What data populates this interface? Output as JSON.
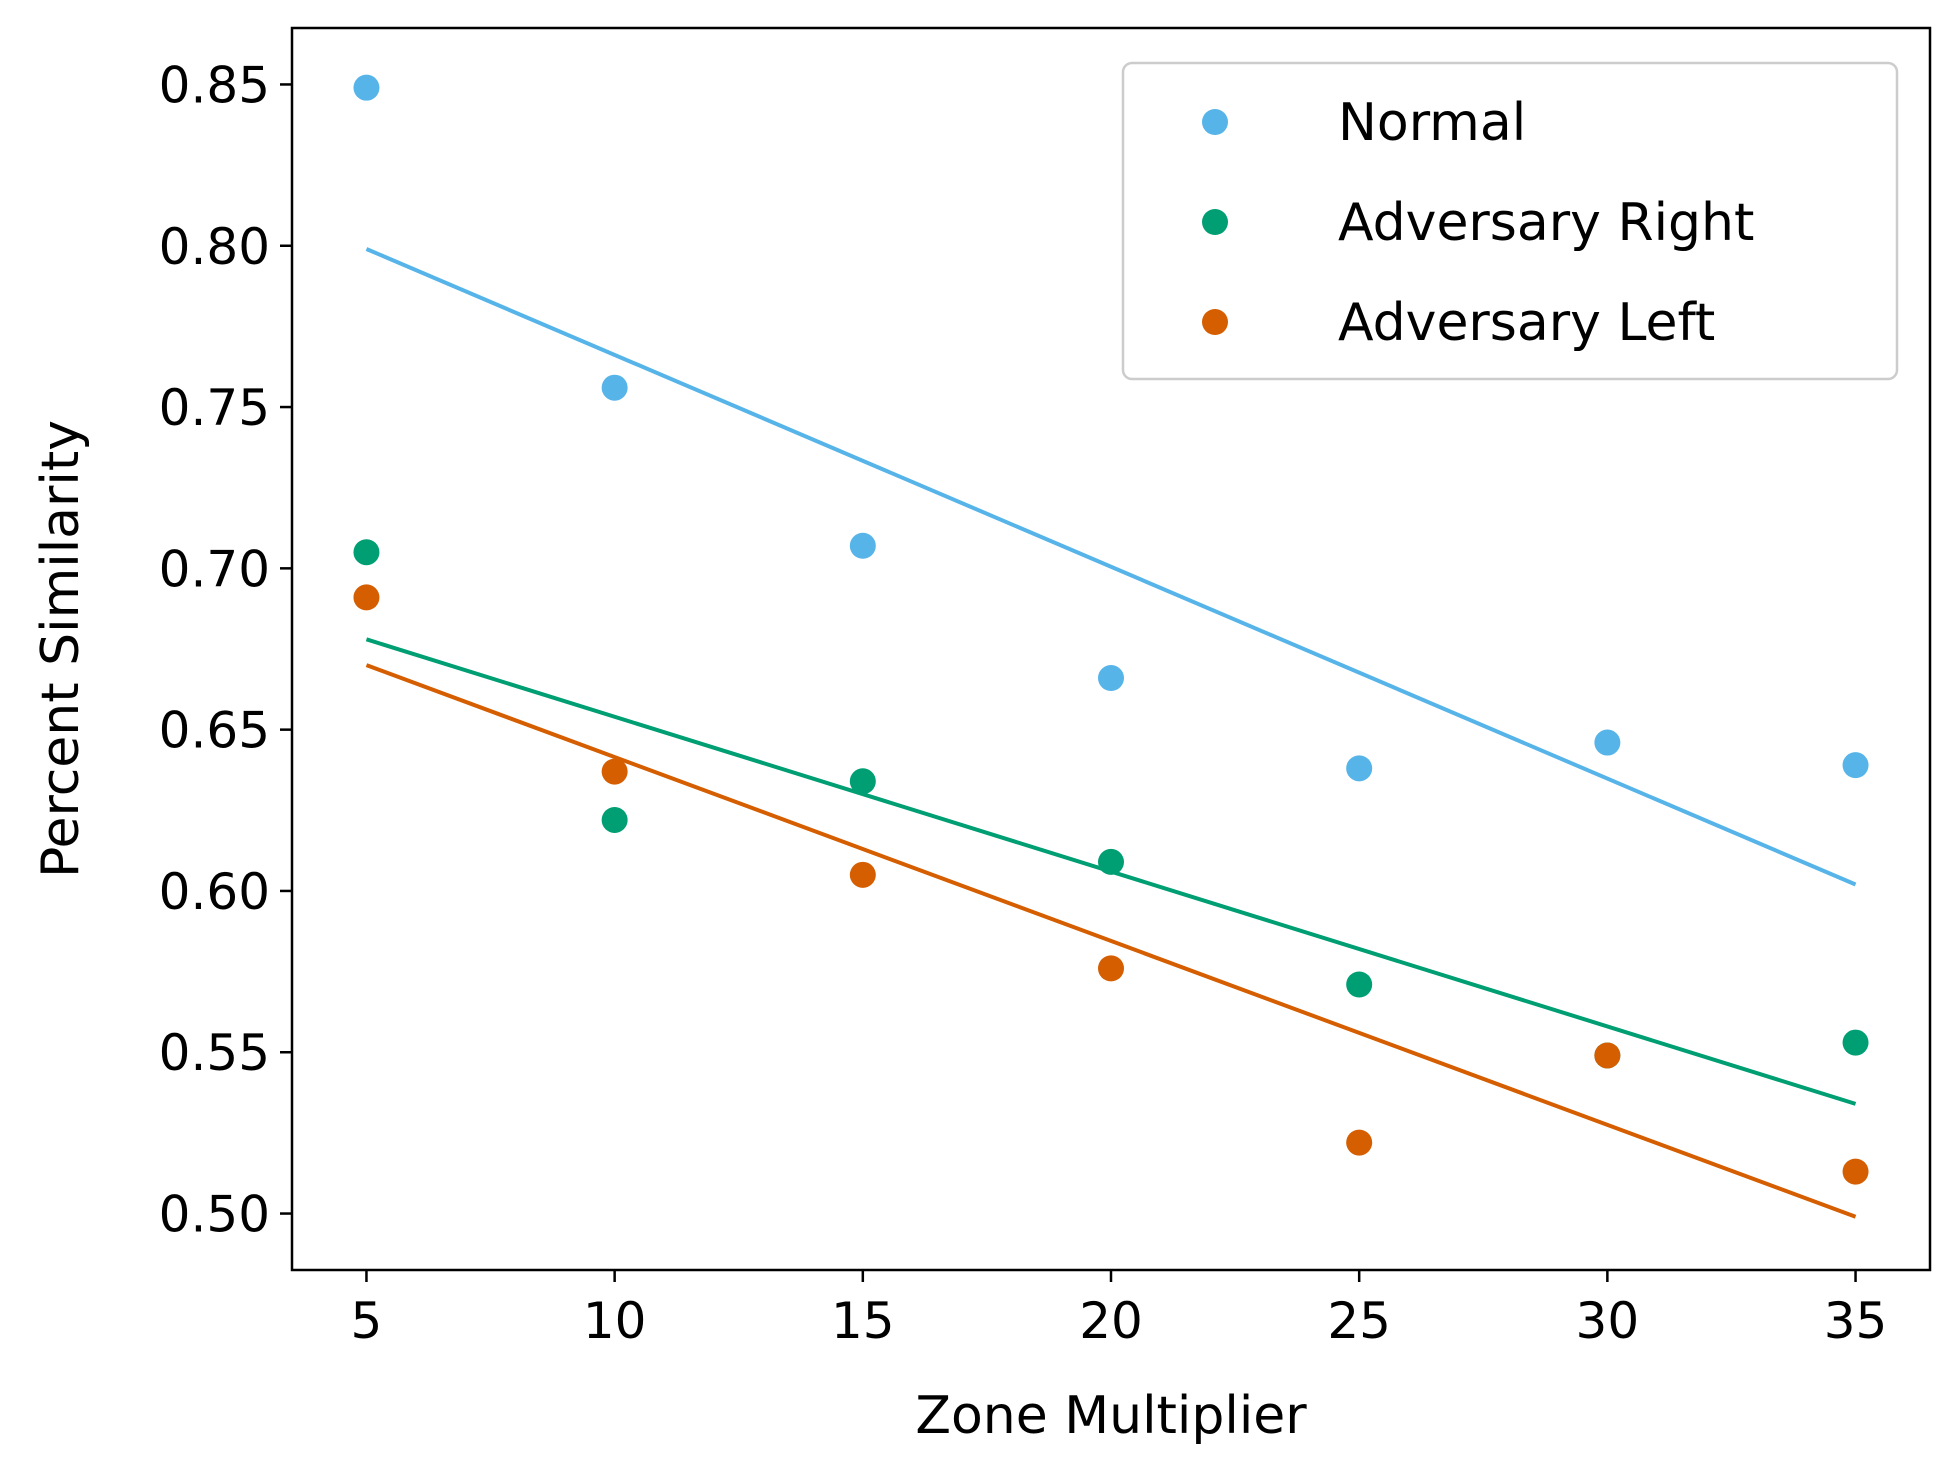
{
  "chart_data": {
    "type": "scatter",
    "xlabel": "Zone Multiplier",
    "ylabel": "Percent Similarity",
    "xlim": [
      3.5,
      36.5
    ],
    "ylim": [
      0.4825,
      0.8675
    ],
    "xticks": [
      5,
      10,
      15,
      20,
      25,
      30,
      35
    ],
    "yticks": [
      0.5,
      0.55,
      0.6,
      0.65,
      0.7,
      0.75,
      0.8,
      0.85
    ],
    "grid": false,
    "legend_position": "top-right",
    "x": [
      5,
      10,
      15,
      20,
      25,
      30,
      35
    ],
    "series": [
      {
        "name": "Normal",
        "color": "#56B4E9",
        "values": [
          0.849,
          0.756,
          0.707,
          0.666,
          0.638,
          0.646,
          0.639
        ],
        "trend": [
          0.799,
          0.602
        ]
      },
      {
        "name": "Adversary Right",
        "color": "#009E73",
        "values": [
          0.705,
          0.622,
          0.634,
          0.609,
          0.571,
          0.549,
          0.553
        ],
        "trend": [
          0.678,
          0.534
        ]
      },
      {
        "name": "Adversary Left",
        "color": "#D55E00",
        "values": [
          0.691,
          0.637,
          0.605,
          0.576,
          0.522,
          0.549,
          0.513
        ],
        "trend": [
          0.67,
          0.499
        ]
      }
    ]
  }
}
